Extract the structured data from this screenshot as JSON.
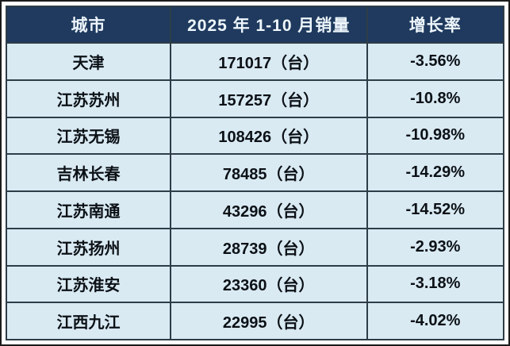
{
  "colors": {
    "header_bg": "#1f3a5e",
    "header_text": "#eef6fc",
    "row_bg": "#d9eaf3",
    "row_text": "#0c1116",
    "grid_line": "#2e3d48",
    "outer_frame": "#1b1b1b",
    "page_bg": "#ffffff"
  },
  "table": {
    "headers": {
      "city": "城市",
      "sales": "2025 年 1-10 月销量",
      "rate": "增长率"
    },
    "rows": [
      {
        "city": "天津",
        "sales": "171017（台）",
        "rate": "-3.56%"
      },
      {
        "city": "江苏苏州",
        "sales": "157257（台）",
        "rate": "-10.8%"
      },
      {
        "city": "江苏无锡",
        "sales": "108426（台）",
        "rate": "-10.98%"
      },
      {
        "city": "吉林长春",
        "sales": "78485（台）",
        "rate": "-14.29%"
      },
      {
        "city": "江苏南通",
        "sales": "43296（台）",
        "rate": "-14.52%"
      },
      {
        "city": "江苏扬州",
        "sales": "28739（台）",
        "rate": "-2.93%"
      },
      {
        "city": "江苏淮安",
        "sales": "23360（台）",
        "rate": "-3.18%"
      },
      {
        "city": "江西九江",
        "sales": "22995（台）",
        "rate": "-4.02%"
      }
    ]
  },
  "chart_data": {
    "type": "table",
    "title": "2025 年 1-10 月销量",
    "columns": [
      "城市",
      "2025 年 1-10 月销量",
      "增长率"
    ],
    "categories": [
      "天津",
      "江苏苏州",
      "江苏无锡",
      "吉林长春",
      "江苏南通",
      "江苏扬州",
      "江苏淮安",
      "江西九江"
    ],
    "series": [
      {
        "name": "销量(台)",
        "values": [
          171017,
          157257,
          108426,
          78485,
          43296,
          28739,
          23360,
          22995
        ]
      },
      {
        "name": "增长率(%)",
        "values": [
          -3.56,
          -10.8,
          -10.98,
          -14.29,
          -14.52,
          -2.93,
          -3.18,
          -4.02
        ]
      }
    ]
  }
}
